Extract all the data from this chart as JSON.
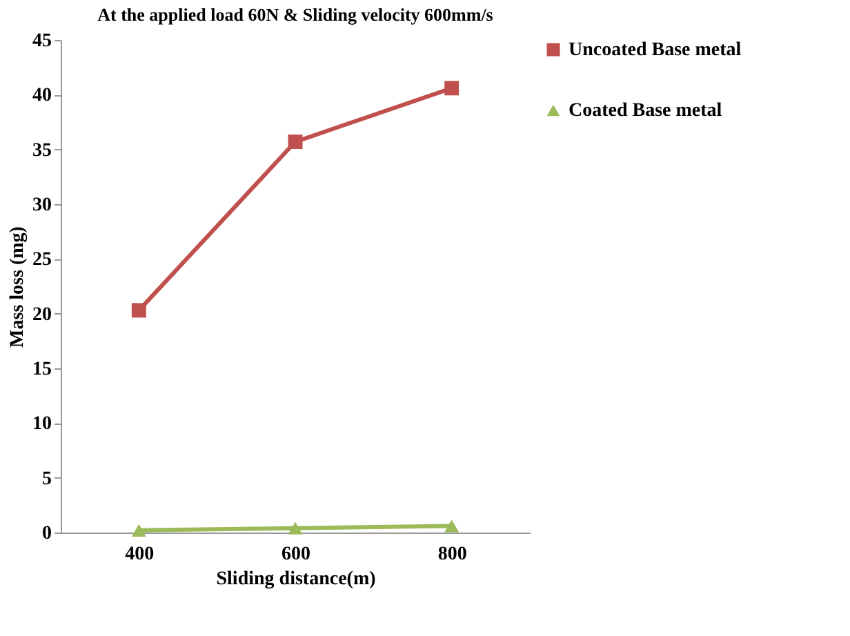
{
  "chart_data": {
    "type": "line",
    "title": "At the applied  load 60N & Sliding  velocity 600mm/s",
    "xlabel": "Sliding  distance(m)",
    "ylabel": "Mass loss (mg)",
    "categories": [
      "400",
      "600",
      "800"
    ],
    "series": [
      {
        "name": "Uncoated Base metal",
        "color": "#c0504d",
        "marker": "square",
        "values": [
          20.3,
          35.7,
          40.6
        ]
      },
      {
        "name": "Coated Base metal",
        "color": "#9bbb59",
        "marker": "triangle",
        "values": [
          0.2,
          0.4,
          0.6
        ]
      }
    ],
    "ylim": [
      0,
      45
    ],
    "yticks": [
      0,
      5,
      10,
      15,
      20,
      25,
      30,
      35,
      40,
      45
    ],
    "grid": false,
    "legend": "right",
    "line_style": "solid"
  }
}
